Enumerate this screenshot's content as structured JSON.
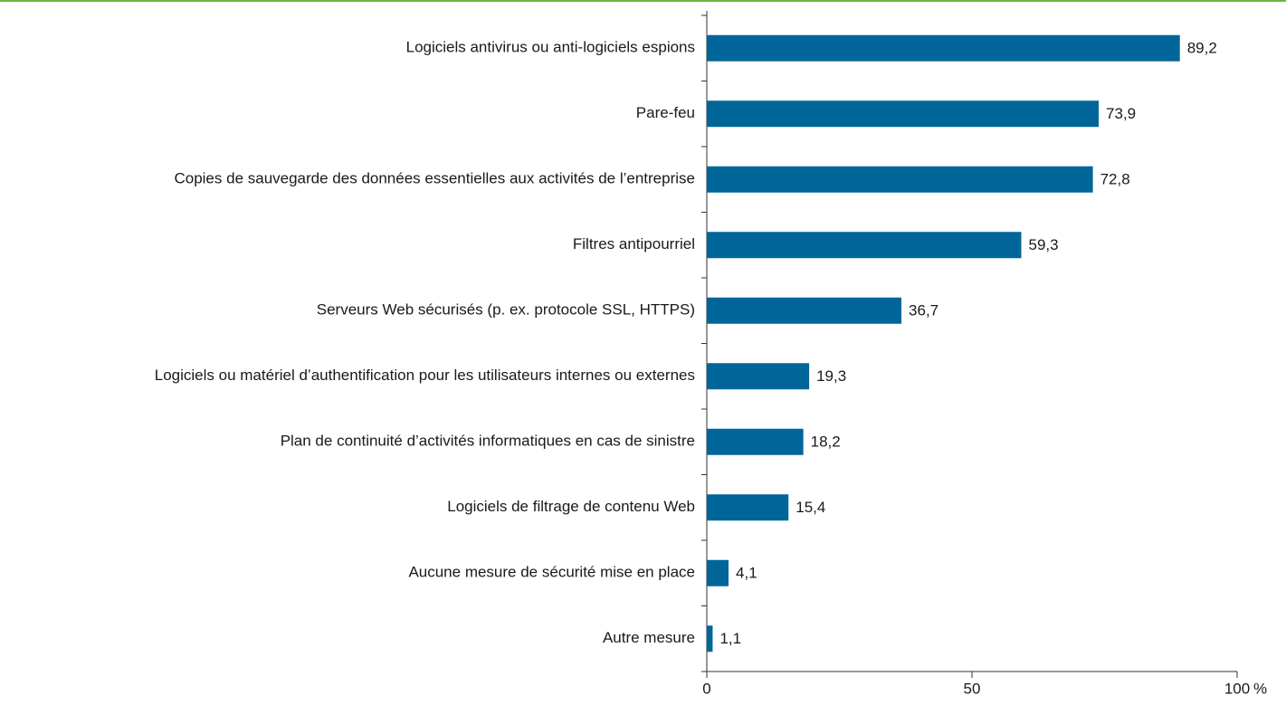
{
  "chart_data": {
    "type": "barh",
    "categories": [
      "Logiciels antivirus ou anti-logiciels espions",
      "Pare-feu",
      "Copies de sauvegarde des données essentielles aux activités de l’entreprise",
      "Filtres antipourriel",
      "Serveurs Web sécurisés (p. ex. protocole SSL, HTTPS)",
      "Logiciels ou matériel d’authentification pour les utilisateurs internes ou externes",
      "Plan de continuité d’activités informatiques en cas de sinistre",
      "Logiciels de filtrage de contenu Web",
      "Aucune mesure de sécurité mise en place",
      "Autre mesure"
    ],
    "values": [
      89.2,
      73.9,
      72.8,
      59.3,
      36.7,
      19.3,
      18.2,
      15.4,
      4.1,
      1.1
    ],
    "value_labels": [
      "89,2",
      "73,9",
      "72,8",
      "59,3",
      "36,7",
      "19,3",
      "18,2",
      "15,4",
      "4,1",
      "1,1"
    ],
    "color": "#006699",
    "xlim": [
      0,
      100
    ],
    "xticks": [
      0,
      50,
      100
    ],
    "x_label": "%"
  }
}
